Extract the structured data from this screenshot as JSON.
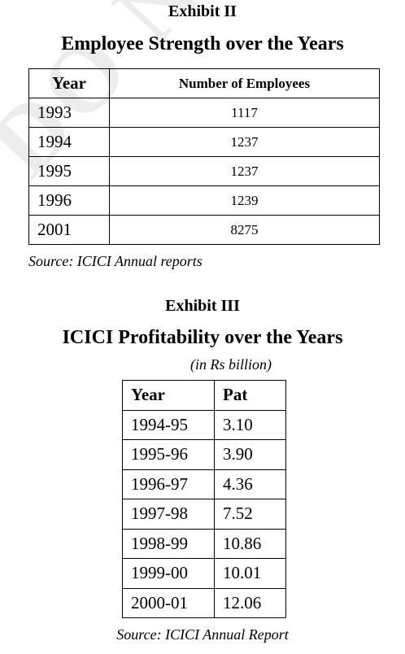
{
  "watermark": "DO NOT C",
  "exhibit2": {
    "label": "Exhibit II",
    "title": "Employee Strength over the Years",
    "table": {
      "headers": [
        "Year",
        "Number of Employees"
      ],
      "rows": [
        [
          "1993",
          "1117"
        ],
        [
          "1994",
          "1237"
        ],
        [
          "1995",
          "1237"
        ],
        [
          "1996",
          "1239"
        ],
        [
          "2001",
          "8275"
        ]
      ]
    },
    "source": "Source: ICICI Annual reports"
  },
  "exhibit3": {
    "label": "Exhibit III",
    "title": "ICICI Profitability over the Years",
    "unit": "(in Rs billion)",
    "table": {
      "headers": [
        "Year",
        "Pat"
      ],
      "rows": [
        [
          "1994-95",
          "3.10"
        ],
        [
          "1995-96",
          "3.90"
        ],
        [
          "1996-97",
          "4.36"
        ],
        [
          "1997-98",
          "7.52"
        ],
        [
          "1998-99",
          "10.86"
        ],
        [
          "1999-00",
          "10.01"
        ],
        [
          "2000-01",
          "12.06"
        ]
      ]
    },
    "source": "Source: ICICI Annual Report"
  }
}
